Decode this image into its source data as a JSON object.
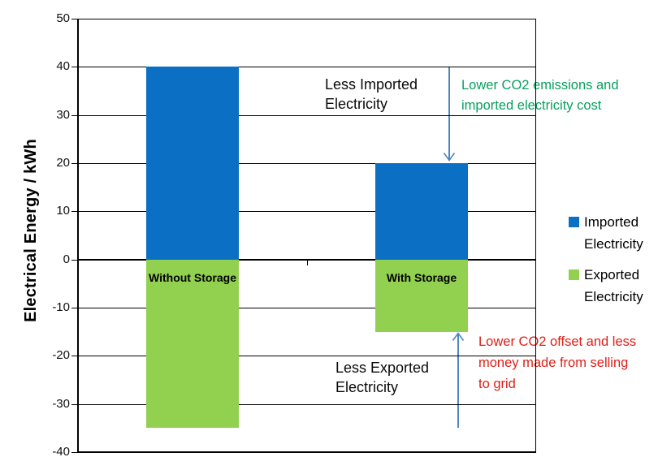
{
  "chart_data": {
    "type": "bar",
    "stacked": true,
    "title": "",
    "xlabel": "",
    "ylabel": "Electrical Energy / kWh",
    "ylim": [
      -40,
      50
    ],
    "yticks": [
      50,
      40,
      30,
      20,
      10,
      0,
      -10,
      -20,
      -30,
      -40
    ],
    "categories": [
      "Without Storage",
      "With Storage"
    ],
    "series": [
      {
        "name": "Imported Electricity",
        "color": "#0B70C4",
        "values": [
          40,
          20
        ]
      },
      {
        "name": "Exported Electricity",
        "color": "#92D050",
        "values": [
          -35,
          -15
        ]
      }
    ],
    "grid": "horizontal",
    "legend_position": "right"
  },
  "legend": {
    "items": [
      {
        "label_lines": [
          "Imported",
          "Electricity"
        ],
        "color": "#0B70C4"
      },
      {
        "label_lines": [
          "Exported",
          "Electricity"
        ],
        "color": "#92D050"
      }
    ]
  },
  "annotations": {
    "less_imported_lines": [
      "Less Imported",
      "Electricity"
    ],
    "less_exported_lines": [
      "Less Exported",
      "Electricity"
    ],
    "green_note_lines": [
      "Lower CO2 emissions and",
      "imported electricity cost"
    ],
    "red_note_lines": [
      "Lower CO2 offset and less",
      "money made from selling",
      "to grid"
    ]
  },
  "colors": {
    "imported_bar": "#0B70C4",
    "exported_bar": "#92D050",
    "green_note_text": "#089E60",
    "red_note_text": "#DE1F17",
    "arrow": "#4E86C0",
    "axis": "#000000"
  }
}
